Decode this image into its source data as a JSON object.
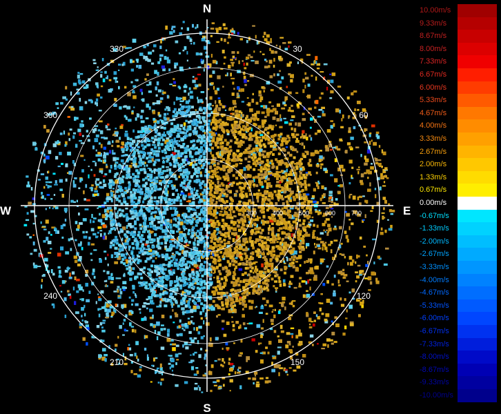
{
  "radar": {
    "compass": {
      "north": "N",
      "south": "S",
      "east": "E",
      "west": "W"
    },
    "bearings": [
      {
        "deg": 30,
        "label": "30"
      },
      {
        "deg": 60,
        "label": "60"
      },
      {
        "deg": 120,
        "label": "120"
      },
      {
        "deg": 150,
        "label": "150"
      },
      {
        "deg": 210,
        "label": "210"
      },
      {
        "deg": 240,
        "label": "240"
      },
      {
        "deg": 300,
        "label": "300"
      },
      {
        "deg": 330,
        "label": "330"
      }
    ],
    "range_rings": [
      "300",
      "400",
      "500",
      "600",
      "700"
    ],
    "colors": {
      "background": "#000000",
      "grid": "#ffffff",
      "approaching": "#4bc8e6",
      "receding": "#d2a014"
    }
  },
  "legend": {
    "entries": [
      {
        "label": "10.00m/s",
        "color": "#a00000",
        "text_color": "#b01818"
      },
      {
        "label": "9.33m/s",
        "color": "#b50000",
        "text_color": "#b81c1c"
      },
      {
        "label": "8.67m/s",
        "color": "#c80000",
        "text_color": "#c02020"
      },
      {
        "label": "8.00m/s",
        "color": "#dc0000",
        "text_color": "#c82222"
      },
      {
        "label": "7.33m/s",
        "color": "#f00000",
        "text_color": "#d82424"
      },
      {
        "label": "6.67m/s",
        "color": "#ff1e00",
        "text_color": "#e02a20"
      },
      {
        "label": "6.00m/s",
        "color": "#ff3c00",
        "text_color": "#e83820"
      },
      {
        "label": "5.33m/s",
        "color": "#ff5a00",
        "text_color": "#ec4a1c"
      },
      {
        "label": "4.67m/s",
        "color": "#ff7800",
        "text_color": "#f05c18"
      },
      {
        "label": "4.00m/s",
        "color": "#ff8c00",
        "text_color": "#f47414"
      },
      {
        "label": "3.33m/s",
        "color": "#ffa000",
        "text_color": "#f68a10"
      },
      {
        "label": "2.67m/s",
        "color": "#ffb400",
        "text_color": "#f8a00c"
      },
      {
        "label": "2.00m/s",
        "color": "#ffc800",
        "text_color": "#fab808"
      },
      {
        "label": "1.33m/s",
        "color": "#ffdc00",
        "text_color": "#fcd004"
      },
      {
        "label": "0.67m/s",
        "color": "#ffee00",
        "text_color": "#fee800"
      },
      {
        "label": "0.00m/s",
        "color": "#ffffff",
        "text_color": "#ffffff"
      },
      {
        "label": "-0.67m/s",
        "color": "#00e6ff",
        "text_color": "#00e0ff"
      },
      {
        "label": "-1.33m/s",
        "color": "#00d2ff",
        "text_color": "#00ccff"
      },
      {
        "label": "-2.00m/s",
        "color": "#00beff",
        "text_color": "#00b8ff"
      },
      {
        "label": "-2.67m/s",
        "color": "#00aaff",
        "text_color": "#00a4ff"
      },
      {
        "label": "-3.33m/s",
        "color": "#0096ff",
        "text_color": "#0090ff"
      },
      {
        "label": "-4.00m/s",
        "color": "#0082ff",
        "text_color": "#007cff"
      },
      {
        "label": "-4.67m/s",
        "color": "#006eff",
        "text_color": "#0068ff"
      },
      {
        "label": "-5.33m/s",
        "color": "#005aff",
        "text_color": "#0054ff"
      },
      {
        "label": "-6.00m/s",
        "color": "#0046ff",
        "text_color": "#0040ff"
      },
      {
        "label": "-6.67m/s",
        "color": "#0032f0",
        "text_color": "#0030f0"
      },
      {
        "label": "-7.33m/s",
        "color": "#001edc",
        "text_color": "#0020dc"
      },
      {
        "label": "-8.00m/s",
        "color": "#000ac8",
        "text_color": "#0010c8"
      },
      {
        "label": "-8.67m/s",
        "color": "#0000b4",
        "text_color": "#0008b4"
      },
      {
        "label": "-9.33m/s",
        "color": "#0000a0",
        "text_color": "#0004a0"
      },
      {
        "label": "-10.00m/s",
        "color": "#00008c",
        "text_color": "#00008c"
      }
    ]
  }
}
